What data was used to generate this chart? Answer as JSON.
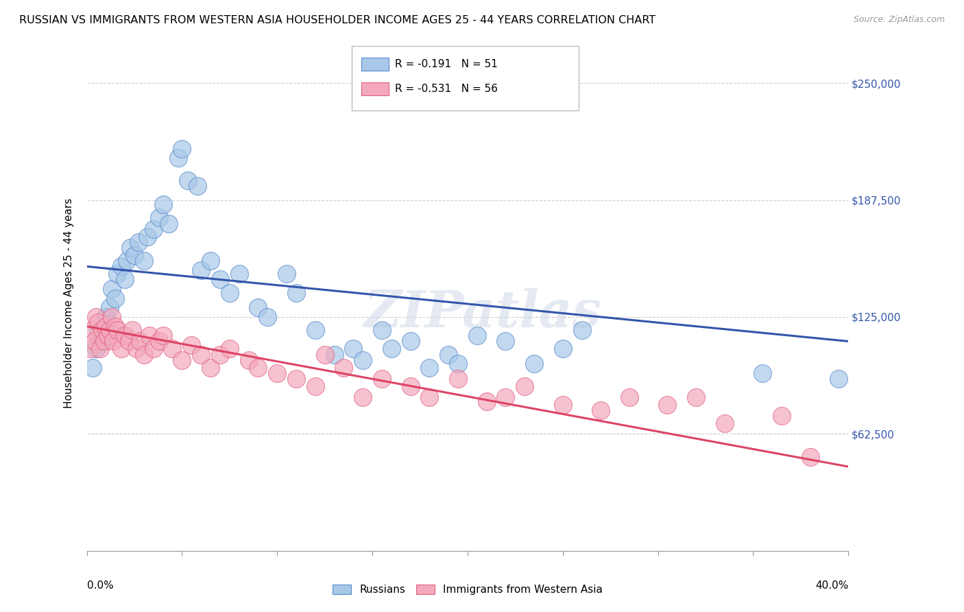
{
  "title": "RUSSIAN VS IMMIGRANTS FROM WESTERN ASIA HOUSEHOLDER INCOME AGES 25 - 44 YEARS CORRELATION CHART",
  "source": "Source: ZipAtlas.com",
  "ylabel": "Householder Income Ages 25 - 44 years",
  "xlim": [
    0.0,
    40.0
  ],
  "ylim": [
    0,
    265000
  ],
  "yticks": [
    62500,
    125000,
    187500,
    250000
  ],
  "ytick_labels": [
    "$62,500",
    "$125,000",
    "$187,500",
    "$250,000"
  ],
  "xtick_positions": [
    0,
    5,
    10,
    15,
    20,
    25,
    30,
    35,
    40
  ],
  "legend_blue_r": "-0.191",
  "legend_blue_n": "51",
  "legend_pink_r": "-0.531",
  "legend_pink_n": "56",
  "blue_color": "#A8C8E8",
  "pink_color": "#F4A8BC",
  "blue_edge_color": "#5588CC",
  "pink_edge_color": "#E06080",
  "blue_line_color": "#3355AA",
  "pink_line_color": "#DD4466",
  "watermark": "ZIPatlas",
  "russians_x": [
    0.3,
    0.5,
    0.6,
    0.8,
    1.0,
    1.2,
    1.3,
    1.5,
    1.6,
    1.8,
    2.0,
    2.1,
    2.3,
    2.5,
    2.7,
    3.0,
    3.2,
    3.5,
    3.8,
    4.0,
    4.3,
    4.8,
    5.0,
    5.3,
    5.8,
    6.0,
    6.5,
    7.0,
    7.5,
    8.0,
    9.0,
    9.5,
    10.5,
    11.0,
    12.0,
    13.0,
    14.0,
    14.5,
    15.5,
    16.0,
    17.0,
    18.0,
    19.0,
    19.5,
    20.5,
    22.0,
    23.5,
    25.0,
    26.0,
    35.5,
    39.5
  ],
  "russians_y": [
    98000,
    108000,
    118000,
    112000,
    125000,
    130000,
    140000,
    135000,
    148000,
    152000,
    145000,
    155000,
    162000,
    158000,
    165000,
    155000,
    168000,
    172000,
    178000,
    185000,
    175000,
    210000,
    215000,
    198000,
    195000,
    150000,
    155000,
    145000,
    138000,
    148000,
    130000,
    125000,
    148000,
    138000,
    118000,
    105000,
    108000,
    102000,
    118000,
    108000,
    112000,
    98000,
    105000,
    100000,
    115000,
    112000,
    100000,
    108000,
    118000,
    95000,
    92000
  ],
  "western_asia_x": [
    0.2,
    0.3,
    0.4,
    0.5,
    0.6,
    0.7,
    0.8,
    0.9,
    1.0,
    1.1,
    1.2,
    1.3,
    1.4,
    1.5,
    1.6,
    1.8,
    2.0,
    2.2,
    2.4,
    2.6,
    2.8,
    3.0,
    3.3,
    3.5,
    3.8,
    4.0,
    4.5,
    5.0,
    5.5,
    6.0,
    6.5,
    7.0,
    7.5,
    8.5,
    9.0,
    10.0,
    11.0,
    12.0,
    12.5,
    13.5,
    14.5,
    15.5,
    17.0,
    18.0,
    19.5,
    21.0,
    22.0,
    23.0,
    25.0,
    27.0,
    28.5,
    30.5,
    32.0,
    33.5,
    36.5,
    38.0
  ],
  "western_asia_y": [
    108000,
    118000,
    112000,
    125000,
    122000,
    108000,
    118000,
    112000,
    120000,
    115000,
    118000,
    125000,
    112000,
    120000,
    118000,
    108000,
    115000,
    112000,
    118000,
    108000,
    112000,
    105000,
    115000,
    108000,
    112000,
    115000,
    108000,
    102000,
    110000,
    105000,
    98000,
    105000,
    108000,
    102000,
    98000,
    95000,
    92000,
    88000,
    105000,
    98000,
    82000,
    92000,
    88000,
    82000,
    92000,
    80000,
    82000,
    88000,
    78000,
    75000,
    82000,
    78000,
    82000,
    68000,
    72000,
    50000
  ],
  "blue_line_x0": 0,
  "blue_line_y0": 152000,
  "blue_line_x1": 40,
  "blue_line_y1": 112000,
  "pink_line_x0": 0,
  "pink_line_y0": 120000,
  "pink_line_x1": 40,
  "pink_line_y1": 45000
}
